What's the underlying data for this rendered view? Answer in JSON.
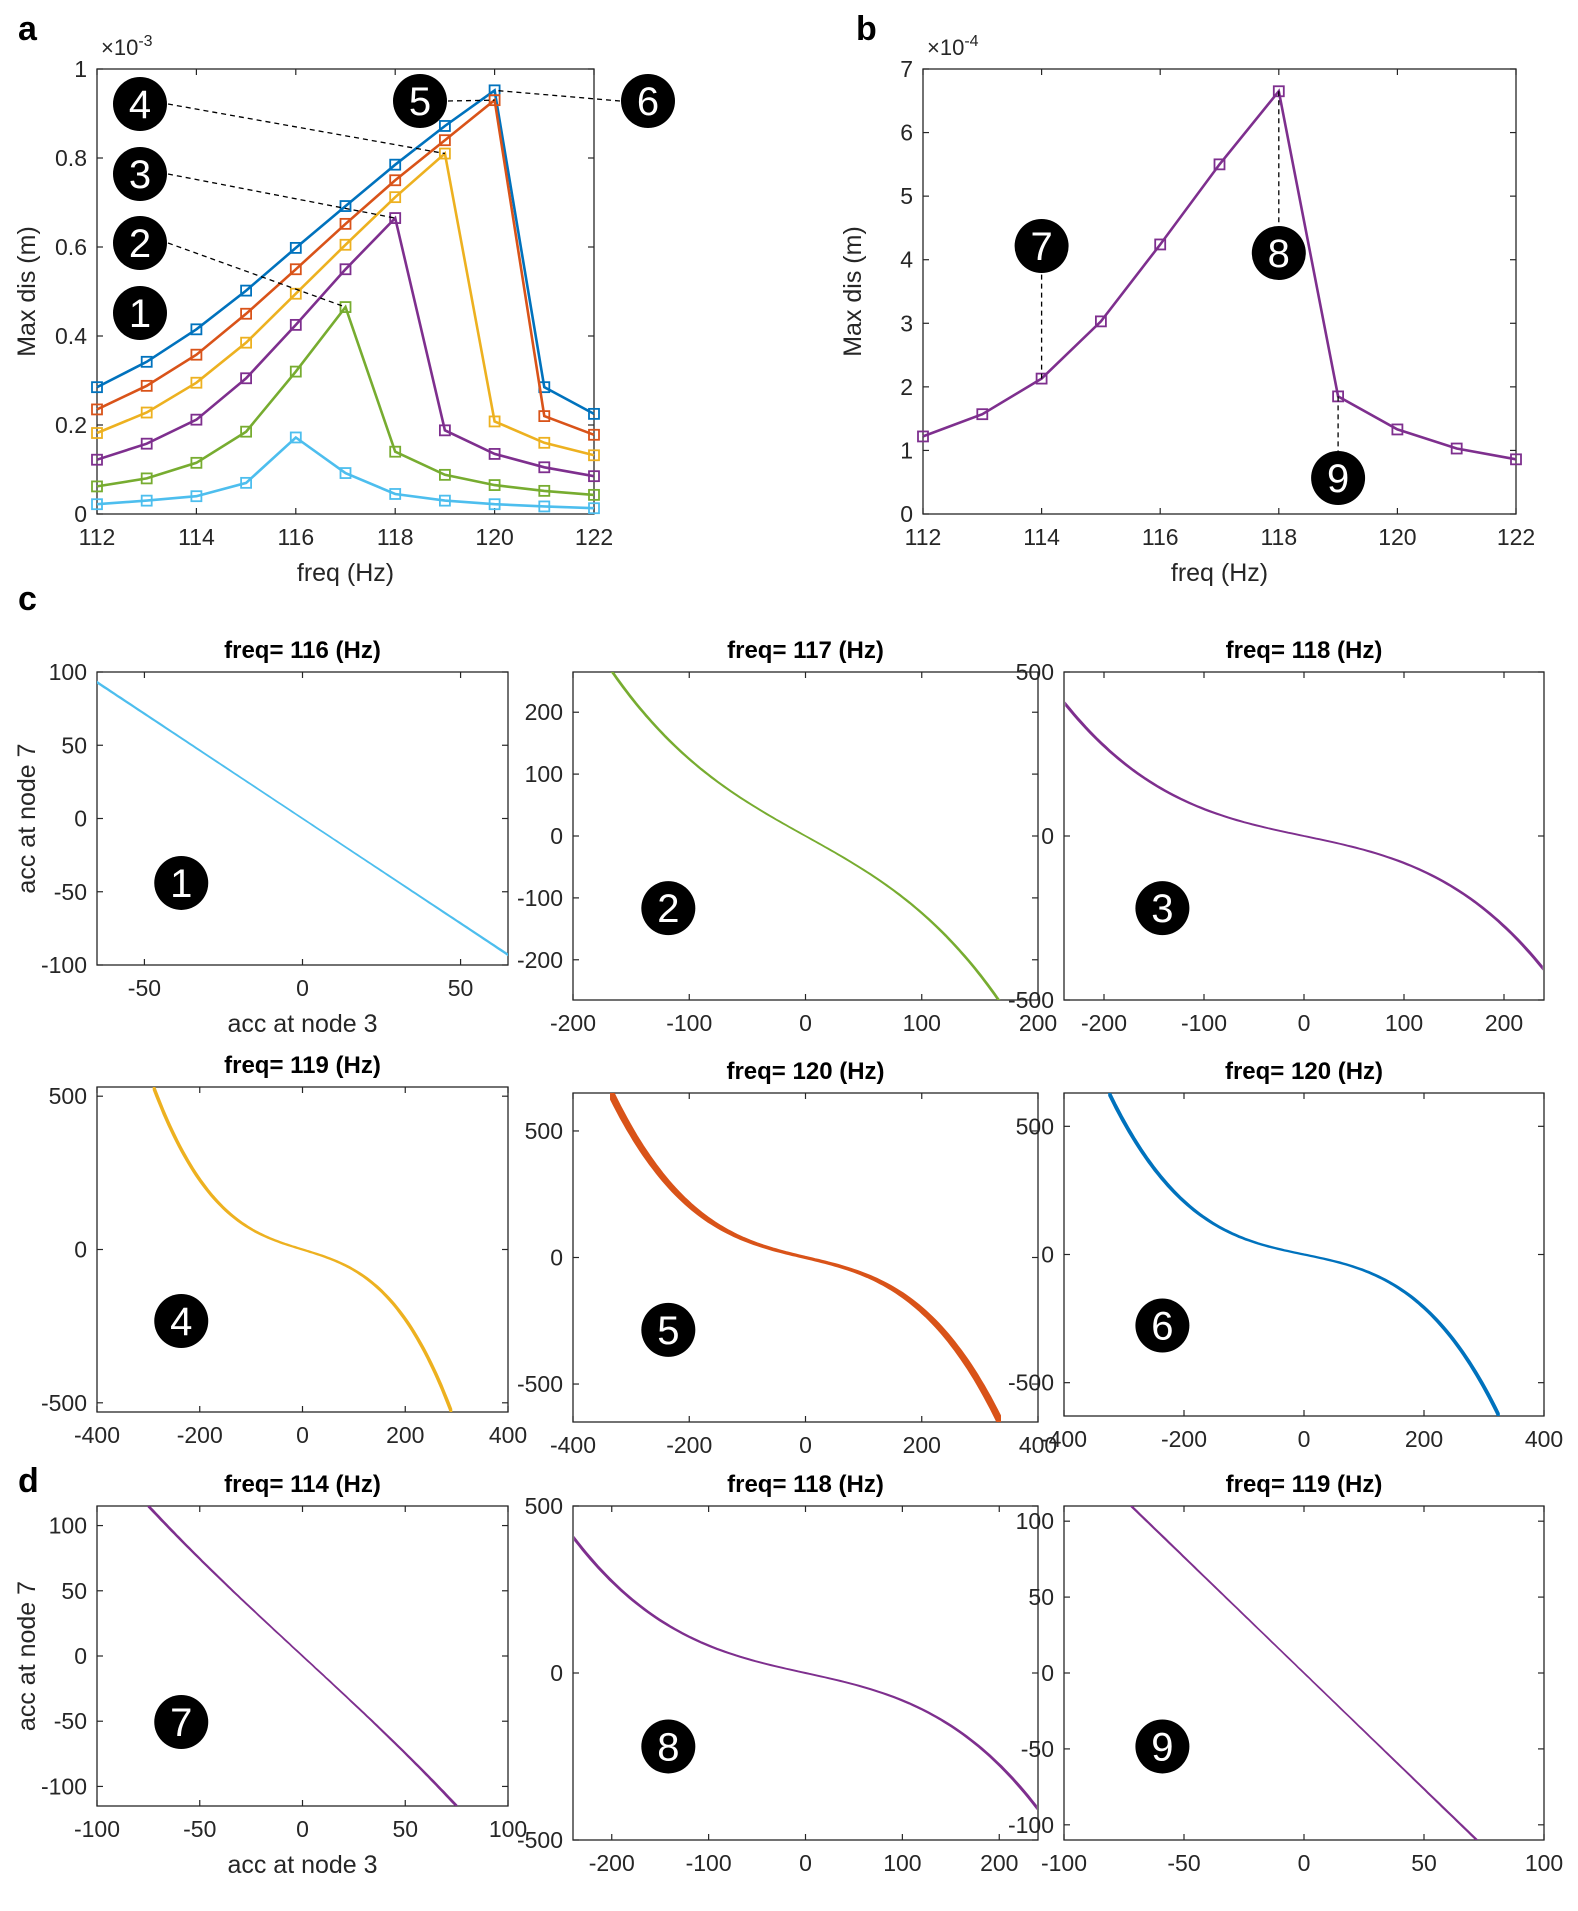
{
  "panel_labels": {
    "a": "a",
    "b": "b",
    "c": "c",
    "d": "d"
  },
  "badge_labels": [
    "1",
    "2",
    "3",
    "4",
    "5",
    "6",
    "7",
    "8",
    "9"
  ],
  "colors": {
    "blue": "#0072BD",
    "orange": "#D95319",
    "yellow": "#EDB120",
    "purple": "#7E2F8E",
    "green": "#77AC30",
    "cyan": "#4DBEEE",
    "axis": "#262626",
    "badge": "#000000",
    "badge_text": "#ffffff",
    "dash": "#000000"
  },
  "chart_data": [
    {
      "id": "a",
      "type": "line",
      "xlabel": "freq (Hz)",
      "ylabel": "Max dis (m)",
      "exponent": "×10",
      "exponent_power": "-3",
      "xlim": [
        112,
        122
      ],
      "ylim": [
        0,
        1
      ],
      "xticks": [
        112,
        114,
        116,
        118,
        120,
        122
      ],
      "xtick_labels": [
        "112",
        "114",
        "116",
        "118",
        "120",
        "122"
      ],
      "yticks": [
        0,
        0.2,
        0.4,
        0.6,
        0.8,
        1
      ],
      "ytick_labels": [
        "0",
        "0.2",
        "0.4",
        "0.6",
        "0.8",
        "1"
      ],
      "x": [
        112,
        113,
        114,
        115,
        116,
        117,
        118,
        119,
        120,
        121,
        122
      ],
      "series": [
        {
          "name": "6",
          "color": "#0072BD",
          "values": [
            0.285,
            0.342,
            0.415,
            0.502,
            0.598,
            0.692,
            0.785,
            0.872,
            0.952,
            0.285,
            0.225
          ]
        },
        {
          "name": "5",
          "color": "#D95319",
          "values": [
            0.235,
            0.288,
            0.358,
            0.45,
            0.55,
            0.652,
            0.75,
            0.84,
            0.93,
            0.22,
            0.178
          ]
        },
        {
          "name": "4",
          "color": "#EDB120",
          "values": [
            0.182,
            0.228,
            0.295,
            0.385,
            0.495,
            0.605,
            0.712,
            0.81,
            0.208,
            0.16,
            0.132
          ]
        },
        {
          "name": "3",
          "color": "#7E2F8E",
          "values": [
            0.122,
            0.158,
            0.212,
            0.305,
            0.425,
            0.55,
            0.665,
            0.188,
            0.135,
            0.105,
            0.085
          ]
        },
        {
          "name": "2",
          "color": "#77AC30",
          "values": [
            0.062,
            0.08,
            0.115,
            0.185,
            0.32,
            0.465,
            0.14,
            0.088,
            0.065,
            0.052,
            0.043
          ]
        },
        {
          "name": "1",
          "color": "#4DBEEE",
          "values": [
            0.022,
            0.03,
            0.04,
            0.07,
            0.172,
            0.092,
            0.045,
            0.03,
            0.022,
            0.017,
            0.013
          ]
        }
      ]
    },
    {
      "id": "b",
      "type": "line",
      "xlabel": "freq (Hz)",
      "ylabel": "Max dis (m)",
      "exponent": "×10",
      "exponent_power": "-4",
      "xlim": [
        112,
        122
      ],
      "ylim": [
        0,
        7
      ],
      "xticks": [
        112,
        114,
        116,
        118,
        120,
        122
      ],
      "xtick_labels": [
        "112",
        "114",
        "116",
        "118",
        "120",
        "122"
      ],
      "yticks": [
        0,
        1,
        2,
        3,
        4,
        5,
        6,
        7
      ],
      "ytick_labels": [
        "0",
        "1",
        "2",
        "3",
        "4",
        "5",
        "6",
        "7"
      ],
      "x": [
        112,
        113,
        114,
        115,
        116,
        117,
        118,
        119,
        120,
        121,
        122
      ],
      "series": [
        {
          "name": "purple",
          "color": "#7E2F8E",
          "values": [
            1.22,
            1.57,
            2.13,
            3.03,
            4.24,
            5.5,
            6.65,
            1.85,
            1.33,
            1.03,
            0.86
          ]
        }
      ]
    },
    {
      "id": "c1",
      "type": "line",
      "title": "freq= 116 (Hz)",
      "badge": "1",
      "xlabel": "acc at node 3",
      "ylabel": "acc  at node 7",
      "xlim": [
        -65,
        65
      ],
      "ylim": [
        -100,
        100
      ],
      "xticks": [
        -50,
        0,
        50
      ],
      "xtick_labels": [
        "-50",
        "0",
        "50"
      ],
      "yticks": [
        -100,
        -50,
        0,
        50,
        100
      ],
      "ytick_labels": [
        "-100",
        "-50",
        "0",
        "50",
        "100"
      ],
      "color": "#4DBEEE",
      "curve": {
        "kind": "linear",
        "xmax": 65,
        "ymax": 93,
        "cubic": 0,
        "band": 0.3
      }
    },
    {
      "id": "c2",
      "type": "line",
      "title": "freq= 117 (Hz)",
      "badge": "2",
      "xlabel": "",
      "ylabel": "",
      "xlim": [
        -200,
        200
      ],
      "ylim": [
        -265,
        265
      ],
      "xticks": [
        -200,
        -100,
        0,
        100,
        200
      ],
      "xtick_labels": [
        "-200",
        "-100",
        "0",
        "100",
        "200"
      ],
      "yticks": [
        -200,
        -100,
        0,
        100,
        200
      ],
      "ytick_labels": [
        "-200",
        "-100",
        "0",
        "100",
        "200"
      ],
      "color": "#77AC30",
      "curve": {
        "kind": "cubic",
        "xmax": 168,
        "ymax": 270,
        "cubic": 0.35,
        "band": 1.5
      }
    },
    {
      "id": "c3",
      "type": "line",
      "title": "freq= 118 (Hz)",
      "badge": "3",
      "xlabel": "",
      "ylabel": "",
      "xlim": [
        -240,
        240
      ],
      "ylim": [
        -500,
        500
      ],
      "xticks": [
        -200,
        -100,
        0,
        100,
        200
      ],
      "xtick_labels": [
        "-200",
        "-100",
        "0",
        "100",
        "200"
      ],
      "yticks": [
        -500,
        0,
        500
      ],
      "ytick_labels": [
        "-500",
        "0",
        "500"
      ],
      "color": "#7E2F8E",
      "curve": {
        "kind": "cubic",
        "xmax": 238,
        "ymax": 400,
        "cubic": 0.62,
        "band": 3
      }
    },
    {
      "id": "c4",
      "type": "line",
      "title": "freq= 119 (Hz)",
      "badge": "4",
      "xlabel": "",
      "ylabel": "",
      "xlim": [
        -400,
        400
      ],
      "ylim": [
        -530,
        530
      ],
      "xticks": [
        -400,
        -200,
        0,
        200,
        400
      ],
      "xtick_labels": [
        "-400",
        "-200",
        "0",
        "200",
        "400"
      ],
      "yticks": [
        -500,
        0,
        500
      ],
      "ytick_labels": [
        "-500",
        "0",
        "500"
      ],
      "color": "#EDB120",
      "curve": {
        "kind": "cubic",
        "xmax": 290,
        "ymax": 530,
        "cubic": 0.72,
        "band": 8
      }
    },
    {
      "id": "c5",
      "type": "line",
      "title": "freq= 120 (Hz)",
      "badge": "5",
      "xlabel": "",
      "ylabel": "",
      "xlim": [
        -400,
        400
      ],
      "ylim": [
        -650,
        650
      ],
      "xticks": [
        -400,
        -200,
        0,
        200,
        400
      ],
      "xtick_labels": [
        "-400",
        "-200",
        "0",
        "200",
        "400"
      ],
      "yticks": [
        -500,
        0,
        500
      ],
      "ytick_labels": [
        "-500",
        "0",
        "500"
      ],
      "color": "#D95319",
      "curve": {
        "kind": "cubic",
        "xmax": 335,
        "ymax": 650,
        "cubic": 0.72,
        "band": 22
      }
    },
    {
      "id": "c6",
      "type": "line",
      "title": "freq= 120 (Hz)",
      "badge": "6",
      "xlabel": "",
      "ylabel": "",
      "xlim": [
        -400,
        400
      ],
      "ylim": [
        -630,
        630
      ],
      "xticks": [
        -400,
        -200,
        0,
        200,
        400
      ],
      "xtick_labels": [
        "-400",
        "-200",
        "0",
        "200",
        "400"
      ],
      "yticks": [
        -500,
        0,
        500
      ],
      "ytick_labels": [
        "-500",
        "0",
        "500"
      ],
      "color": "#0072BD",
      "curve": {
        "kind": "cubic",
        "xmax": 325,
        "ymax": 630,
        "cubic": 0.75,
        "band": 9
      }
    },
    {
      "id": "d7",
      "type": "line",
      "title": "freq= 114 (Hz)",
      "badge": "7",
      "xlabel": "acc at node 3",
      "ylabel": "acc  at node 7",
      "xlim": [
        -100,
        100
      ],
      "ylim": [
        -115,
        115
      ],
      "xticks": [
        -100,
        -50,
        0,
        50,
        100
      ],
      "xtick_labels": [
        "-100",
        "-50",
        "0",
        "50",
        "100"
      ],
      "yticks": [
        -100,
        -50,
        0,
        50,
        100
      ],
      "ytick_labels": [
        "-100",
        "-50",
        "0",
        "50",
        "100"
      ],
      "color": "#7E2F8E",
      "curve": {
        "kind": "linear",
        "xmax": 75,
        "ymax": 115,
        "cubic": 0.05,
        "band": 0.6
      }
    },
    {
      "id": "d8",
      "type": "line",
      "title": "freq= 118 (Hz)",
      "badge": "8",
      "xlabel": "",
      "ylabel": "",
      "xlim": [
        -240,
        240
      ],
      "ylim": [
        -500,
        500
      ],
      "xticks": [
        -200,
        -100,
        0,
        100,
        200
      ],
      "xtick_labels": [
        "-200",
        "-100",
        "0",
        "100",
        "200"
      ],
      "yticks": [
        -500,
        0,
        500
      ],
      "ytick_labels": [
        "-500",
        "0",
        "500"
      ],
      "color": "#7E2F8E",
      "curve": {
        "kind": "cubic",
        "xmax": 238,
        "ymax": 400,
        "cubic": 0.62,
        "band": 3
      }
    },
    {
      "id": "d9",
      "type": "line",
      "title": "freq= 119 (Hz)",
      "badge": "9",
      "xlabel": "",
      "ylabel": "",
      "xlim": [
        -100,
        100
      ],
      "ylim": [
        -110,
        110
      ],
      "xticks": [
        -100,
        -50,
        0,
        50,
        100
      ],
      "xtick_labels": [
        "-100",
        "-50",
        "0",
        "50",
        "100"
      ],
      "yticks": [
        -100,
        -50,
        0,
        50,
        100
      ],
      "ytick_labels": [
        "-100",
        "-50",
        "0",
        "50",
        "100"
      ],
      "color": "#7E2F8E",
      "curve": {
        "kind": "linear",
        "xmax": 72,
        "ymax": 110,
        "cubic": 0,
        "band": 0.3
      }
    }
  ]
}
